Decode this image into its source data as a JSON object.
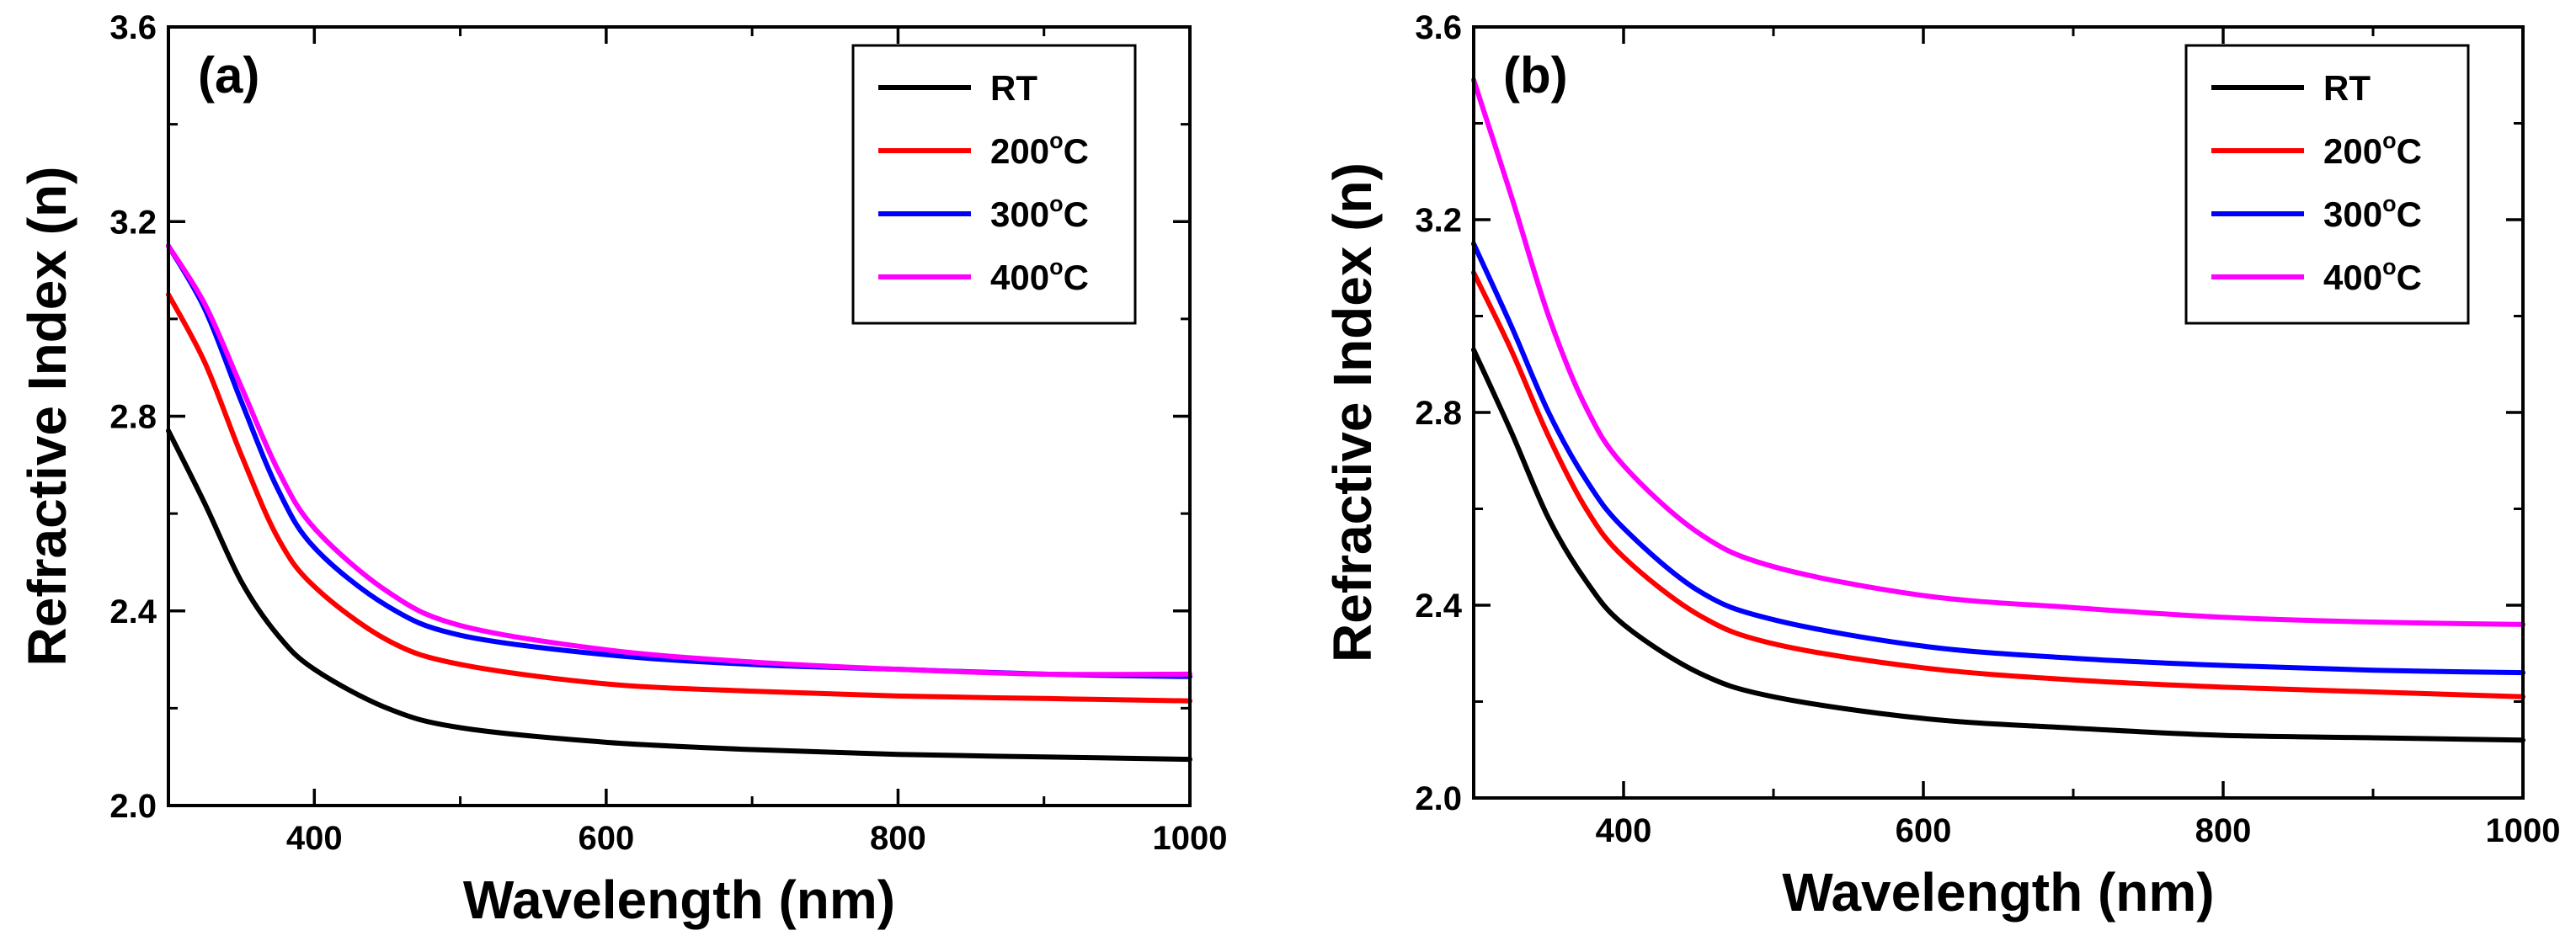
{
  "chart_data": [
    {
      "type": "line",
      "panel_label": "(a)",
      "xlabel": "Wavelength (nm)",
      "ylabel": "Refractive Index (n)",
      "xlim": [
        300,
        1000
      ],
      "ylim": [
        2.0,
        3.6
      ],
      "xticks": [
        400,
        600,
        800,
        1000
      ],
      "xtick_labels": [
        "400",
        "600",
        "800",
        "1000"
      ],
      "yticks": [
        2.0,
        2.4,
        2.8,
        3.2,
        3.6
      ],
      "ytick_labels": [
        "2.0",
        "2.4",
        "2.8",
        "3.2",
        "3.6"
      ],
      "legend_position": "top-right",
      "x": [
        300,
        325,
        350,
        375,
        400,
        450,
        500,
        600,
        700,
        800,
        900,
        1000
      ],
      "series": [
        {
          "name": "RT",
          "label_main": "RT",
          "label_sup": "",
          "label_tail": "",
          "color": "#000000",
          "values": [
            2.77,
            2.62,
            2.46,
            2.35,
            2.28,
            2.2,
            2.16,
            2.13,
            2.115,
            2.105,
            2.1,
            2.095
          ]
        },
        {
          "name": "200°C",
          "label_main": "200",
          "label_sup": "o",
          "label_tail": "C",
          "color": "#ff0000",
          "values": [
            3.05,
            2.91,
            2.72,
            2.55,
            2.45,
            2.34,
            2.29,
            2.25,
            2.235,
            2.225,
            2.22,
            2.215
          ]
        },
        {
          "name": "300°C",
          "label_main": "300",
          "label_sup": "o",
          "label_tail": "C",
          "color": "#0000ff",
          "values": [
            3.15,
            3.02,
            2.83,
            2.65,
            2.53,
            2.41,
            2.35,
            2.31,
            2.29,
            2.28,
            2.27,
            2.265
          ]
        },
        {
          "name": "400°C",
          "label_main": "400",
          "label_sup": "o",
          "label_tail": "C",
          "color": "#ff00ff",
          "values": [
            3.15,
            3.03,
            2.86,
            2.69,
            2.57,
            2.44,
            2.37,
            2.32,
            2.295,
            2.28,
            2.27,
            2.27
          ]
        }
      ]
    },
    {
      "type": "line",
      "panel_label": "(b)",
      "xlabel": "Wavelength (nm)",
      "ylabel": "Refractive Index (n)",
      "xlim": [
        300,
        1000
      ],
      "ylim": [
        2.0,
        3.6
      ],
      "xticks": [
        400,
        600,
        800,
        1000
      ],
      "xtick_labels": [
        "400",
        "600",
        "800",
        "1000"
      ],
      "yticks": [
        2.0,
        2.4,
        2.8,
        3.2,
        3.6
      ],
      "ytick_labels": [
        "2.0",
        "2.4",
        "2.8",
        "3.2",
        "3.6"
      ],
      "legend_position": "top-right",
      "x": [
        300,
        325,
        350,
        375,
        400,
        450,
        500,
        600,
        700,
        800,
        900,
        1000
      ],
      "series": [
        {
          "name": "RT",
          "label_main": "RT",
          "label_sup": "",
          "label_tail": "",
          "color": "#000000",
          "values": [
            2.93,
            2.76,
            2.58,
            2.45,
            2.36,
            2.26,
            2.21,
            2.165,
            2.145,
            2.13,
            2.125,
            2.12
          ]
        },
        {
          "name": "200°C",
          "label_main": "200",
          "label_sup": "o",
          "label_tail": "C",
          "color": "#ff0000",
          "values": [
            3.09,
            2.93,
            2.75,
            2.6,
            2.5,
            2.38,
            2.32,
            2.27,
            2.245,
            2.23,
            2.22,
            2.21
          ]
        },
        {
          "name": "300°C",
          "label_main": "300",
          "label_sup": "o",
          "label_tail": "C",
          "color": "#0000ff",
          "values": [
            3.15,
            2.98,
            2.8,
            2.66,
            2.56,
            2.43,
            2.37,
            2.315,
            2.29,
            2.275,
            2.265,
            2.26
          ]
        },
        {
          "name": "400°C",
          "label_main": "400",
          "label_sup": "o",
          "label_tail": "C",
          "color": "#ff00ff",
          "values": [
            3.49,
            3.25,
            3.0,
            2.81,
            2.69,
            2.55,
            2.48,
            2.42,
            2.395,
            2.375,
            2.365,
            2.36
          ]
        }
      ]
    }
  ]
}
